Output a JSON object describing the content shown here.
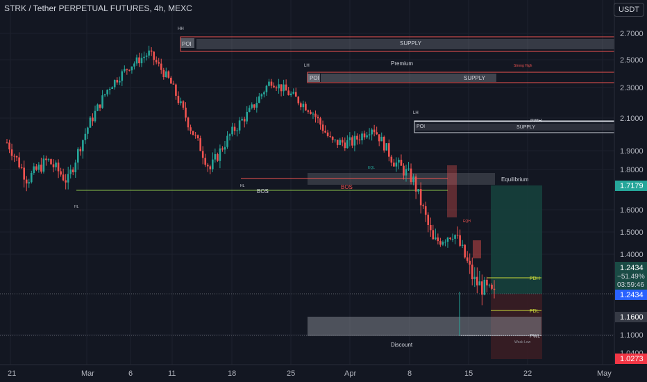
{
  "header": {
    "title": "STRK / Tether PERPETUAL FUTURES, 4h, MEXC",
    "currency_button": "USDT"
  },
  "colors": {
    "background": "#131722",
    "bull": "#26a69a",
    "bear": "#ef5350",
    "supply_zone": "#b2b5be",
    "bos_line": "#8bc34a",
    "long_box": "#1a3f3c",
    "short_box": "#3f1e24"
  },
  "price_axis": {
    "labels": [
      "2.7000",
      "2.5000",
      "2.3000",
      "2.1000",
      "1.9000",
      "1.8000",
      "1.6000",
      "1.5000",
      "1.4000",
      "1.1000",
      "1.0400"
    ],
    "tags": {
      "target": "1.7179",
      "current": "1.2434",
      "change": "−51.49%",
      "countdown": "03:59:46",
      "entry": "1.2434",
      "stop": "1.1600",
      "low": "1.0273"
    }
  },
  "time_axis": {
    "labels": [
      "21",
      "Mar",
      "6",
      "11",
      "18",
      "25",
      "Apr",
      "8",
      "15",
      "22",
      "May"
    ]
  },
  "annotations": {
    "hh": "HH",
    "poi_1": "POI",
    "supply_1": "SUPPLY",
    "premium": "Premium",
    "lh_1": "LH",
    "poi_2": "POI",
    "supply_2": "SUPPLY",
    "strong_high": "Strong High",
    "lh_2": "LH",
    "poi_3": "POI",
    "pwh": "PWH",
    "supply_3": "SUPPLY",
    "eql": "EQL",
    "hl_1": "HL",
    "hl_2": "HL",
    "bos_1": "BOS",
    "bos_2": "BOS",
    "equilibrium": "Equilibrium",
    "eqh": "EQH",
    "pdh": "PDH",
    "pdl": "PDL",
    "pwl": "PWL",
    "weak_low": "Weak Low",
    "discount": "Discount"
  },
  "chart_data": {
    "type": "candlestick",
    "symbol": "STRK/USDT",
    "timeframe": "4h",
    "x_ticks": [
      "21",
      "Mar",
      "6",
      "11",
      "18",
      "25",
      "Apr",
      "8",
      "15",
      "22",
      "May"
    ],
    "y_ticks": [
      2.7,
      2.5,
      2.3,
      2.1,
      1.9,
      1.8,
      1.6,
      1.5,
      1.4,
      1.1,
      1.04
    ],
    "ylim": [
      1.02,
      2.76
    ],
    "approx_closes_by_date": [
      {
        "date": "Feb 21",
        "close": 1.95
      },
      {
        "date": "Feb 24",
        "close": 1.75
      },
      {
        "date": "Feb 27",
        "close": 1.85
      },
      {
        "date": "Mar 1",
        "close": 1.74
      },
      {
        "date": "Mar 4",
        "close": 2.05
      },
      {
        "date": "Mar 6",
        "close": 2.3
      },
      {
        "date": "Mar 8",
        "close": 2.45
      },
      {
        "date": "Mar 11",
        "close": 2.55
      },
      {
        "date": "Mar 13",
        "close": 2.35
      },
      {
        "date": "Mar 15",
        "close": 2.05
      },
      {
        "date": "Mar 18",
        "close": 1.8
      },
      {
        "date": "Mar 20",
        "close": 2.0
      },
      {
        "date": "Mar 23",
        "close": 2.15
      },
      {
        "date": "Mar 26",
        "close": 2.35
      },
      {
        "date": "Mar 28",
        "close": 2.25
      },
      {
        "date": "Mar 30",
        "close": 2.15
      },
      {
        "date": "Apr 2",
        "close": 1.95
      },
      {
        "date": "Apr 5",
        "close": 1.95
      },
      {
        "date": "Apr 7",
        "close": 2.05
      },
      {
        "date": "Apr 9",
        "close": 1.85
      },
      {
        "date": "Apr 11",
        "close": 1.75
      },
      {
        "date": "Apr 12",
        "close": 1.45
      },
      {
        "date": "Apr 14",
        "close": 1.5
      },
      {
        "date": "Apr 16",
        "close": 1.3
      },
      {
        "date": "Apr 17",
        "close": 1.2434
      }
    ]
  }
}
